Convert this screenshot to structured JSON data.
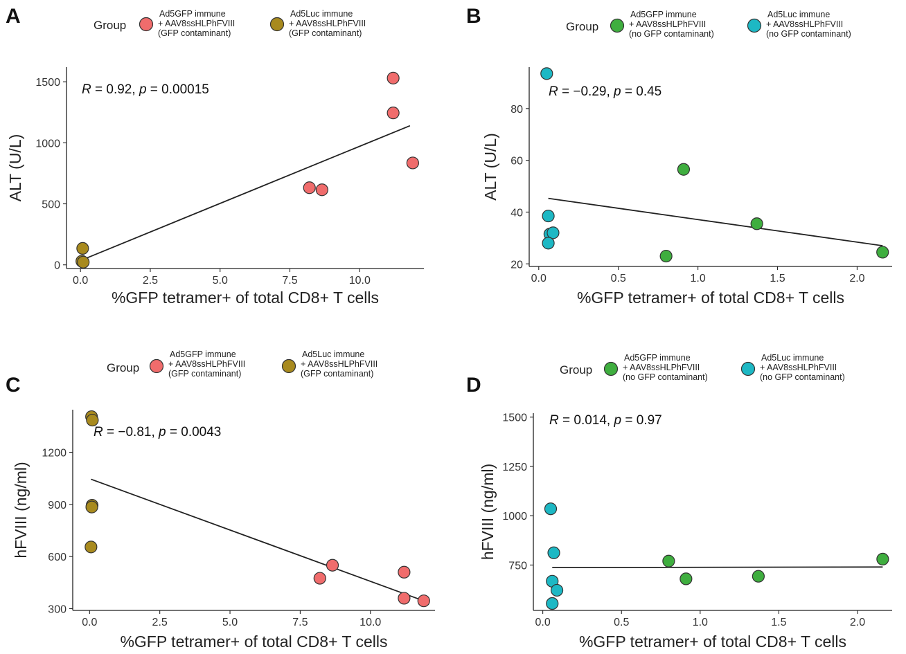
{
  "colors": {
    "ad5gfp_contaminant": "#f06c6c",
    "ad5luc_contaminant": "#a88a1e",
    "ad5gfp_no_contaminant": "#3fae3f",
    "ad5luc_no_contaminant": "#1db8c4"
  },
  "chart_data": [
    {
      "panel": "A",
      "type": "scatter",
      "legend": {
        "title": "Group",
        "entries": [
          {
            "name": "Ad5GFP immune",
            "lines": [
              "+ AAV8ssHLPhFVIII",
              "(GFP contaminant)"
            ],
            "color_key": "ad5gfp_contaminant"
          },
          {
            "name": "Ad5Luc immune",
            "lines": [
              "+ AAV8ssHLPhFVIII",
              "(GFP contaminant)"
            ],
            "color_key": "ad5luc_contaminant"
          }
        ]
      },
      "stat": {
        "r_label": "R",
        "r_value": " = 0.92, ",
        "p_label": "p",
        "p_value": " = 0.00015"
      },
      "xlabel": "%GFP tetramer+ of total CD8+ T cells",
      "ylabel": "ALT (U/L)",
      "xlim": [
        -0.5,
        12.3
      ],
      "ylim": [
        -30,
        1620
      ],
      "xticks": [
        0.0,
        2.5,
        5.0,
        7.5,
        10.0
      ],
      "xtick_labels": [
        "0.0",
        "2.5",
        "5.0",
        "7.5",
        "10.0"
      ],
      "yticks": [
        0,
        500,
        1000,
        1500
      ],
      "ytick_labels": [
        "0",
        "500",
        "1000",
        "1500"
      ],
      "fit": [
        [
          0.05,
          40
        ],
        [
          11.8,
          1140
        ]
      ],
      "series": [
        {
          "name": "Ad5GFP immune + AAV8ssHLPhFVIII (GFP contaminant)",
          "color_key": "ad5gfp_contaminant",
          "points": [
            [
              11.2,
              1530
            ],
            [
              11.2,
              1245
            ],
            [
              11.9,
              835
            ],
            [
              8.2,
              632
            ],
            [
              8.65,
              615
            ]
          ]
        },
        {
          "name": "Ad5Luc immune + AAV8ssHLPhFVIII (GFP contaminant)",
          "color_key": "ad5luc_contaminant",
          "points": [
            [
              0.08,
              135
            ],
            [
              0.05,
              30
            ],
            [
              0.1,
              22
            ]
          ]
        }
      ]
    },
    {
      "panel": "B",
      "type": "scatter",
      "legend": {
        "title": "Group",
        "entries": [
          {
            "name": "Ad5GFP immune",
            "lines": [
              "+ AAV8ssHLPhFVIII",
              "(no GFP contaminant)"
            ],
            "color_key": "ad5gfp_no_contaminant"
          },
          {
            "name": "Ad5Luc immune",
            "lines": [
              "+ AAV8ssHLPhFVIII",
              "(no GFP contaminant)"
            ],
            "color_key": "ad5luc_no_contaminant"
          }
        ]
      },
      "stat": {
        "r_label": "R",
        "r_value": " = −0.29, ",
        "p_label": "p",
        "p_value": " = 0.45"
      },
      "xlabel": "%GFP tetramer+ of total CD8+ T cells",
      "ylabel": "ALT (U/L)",
      "xlim": [
        -0.06,
        2.22
      ],
      "ylim": [
        19,
        96
      ],
      "xticks": [
        0.0,
        0.5,
        1.0,
        1.5,
        2.0
      ],
      "xtick_labels": [
        "0.0",
        "0.5",
        "1.0",
        "1.5",
        "2.0"
      ],
      "yticks": [
        20,
        40,
        60,
        80
      ],
      "ytick_labels": [
        "20",
        "40",
        "60",
        "80"
      ],
      "fit": [
        [
          0.06,
          45.3
        ],
        [
          2.16,
          27.0
        ]
      ],
      "series": [
        {
          "name": "Ad5GFP immune + AAV8ssHLPhFVIII (no GFP contaminant)",
          "color_key": "ad5gfp_no_contaminant",
          "points": [
            [
              0.91,
              56.5
            ],
            [
              1.37,
              35.5
            ],
            [
              0.8,
              23
            ],
            [
              2.16,
              24.5
            ]
          ]
        },
        {
          "name": "Ad5Luc immune + AAV8ssHLPhFVIII (no GFP contaminant)",
          "color_key": "ad5luc_no_contaminant",
          "points": [
            [
              0.05,
              93.5
            ],
            [
              0.06,
              38.5
            ],
            [
              0.07,
              31.5
            ],
            [
              0.09,
              32
            ],
            [
              0.06,
              28
            ]
          ]
        }
      ]
    },
    {
      "panel": "C",
      "type": "scatter",
      "legend": {
        "title": "Group",
        "entries": [
          {
            "name": "Ad5GFP immune",
            "lines": [
              "+ AAV8ssHLPhFVIII",
              "(GFP contaminant)"
            ],
            "color_key": "ad5gfp_contaminant"
          },
          {
            "name": "Ad5Luc immune",
            "lines": [
              "+ AAV8ssHLPhFVIII",
              "(GFP contaminant)"
            ],
            "color_key": "ad5luc_contaminant"
          }
        ]
      },
      "stat": {
        "r_label": "R",
        "r_value": " = −0.81, ",
        "p_label": "p",
        "p_value": " = 0.0043"
      },
      "xlabel": "%GFP tetramer+ of total CD8+ T cells",
      "ylabel": "hFVIII (ng/ml)",
      "xlim": [
        -0.6,
        12.3
      ],
      "ylim": [
        290,
        1445
      ],
      "xticks": [
        0.0,
        2.5,
        5.0,
        7.5,
        10.0
      ],
      "xtick_labels": [
        "0.0",
        "2.5",
        "5.0",
        "7.5",
        "10.0"
      ],
      "yticks": [
        300,
        600,
        900,
        1200
      ],
      "ytick_labels": [
        "300",
        "600",
        "900",
        "1200"
      ],
      "fit": [
        [
          0.05,
          1045
        ],
        [
          11.9,
          345
        ]
      ],
      "series": [
        {
          "name": "Ad5GFP immune + AAV8ssHLPhFVIII (GFP contaminant)",
          "color_key": "ad5gfp_contaminant",
          "points": [
            [
              8.65,
              550
            ],
            [
              8.2,
              475
            ],
            [
              11.2,
              510
            ],
            [
              11.2,
              360
            ],
            [
              11.9,
              345
            ]
          ]
        },
        {
          "name": "Ad5Luc immune + AAV8ssHLPhFVIII (GFP contaminant)",
          "color_key": "ad5luc_contaminant",
          "points": [
            [
              0.07,
              1405
            ],
            [
              0.1,
              1385
            ],
            [
              0.09,
              895
            ],
            [
              0.08,
              885
            ],
            [
              0.05,
              655
            ]
          ]
        }
      ]
    },
    {
      "panel": "D",
      "type": "scatter",
      "legend": {
        "title": "Group",
        "entries": [
          {
            "name": "Ad5GFP immune",
            "lines": [
              "+ AAV8ssHLPhFVIII",
              "(no GFP contaminant)"
            ],
            "color_key": "ad5gfp_no_contaminant"
          },
          {
            "name": "Ad5Luc immune",
            "lines": [
              "+ AAV8ssHLPhFVIII",
              "(no GFP contaminant)"
            ],
            "color_key": "ad5luc_no_contaminant"
          }
        ]
      },
      "stat": {
        "r_label": "R",
        "r_value": " = 0.014, ",
        "p_label": "p",
        "p_value": " = 0.97"
      },
      "xlabel": "%GFP tetramer+ of total CD8+ T cells",
      "ylabel": "hFVIII (ng/ml)",
      "xlim": [
        -0.06,
        2.22
      ],
      "ylim": [
        520,
        1520
      ],
      "xticks": [
        0.0,
        0.5,
        1.0,
        1.5,
        2.0
      ],
      "xtick_labels": [
        "0.0",
        "0.5",
        "1.0",
        "1.5",
        "2.0"
      ],
      "yticks": [
        750,
        1000,
        1250,
        1500
      ],
      "ytick_labels": [
        "750",
        "1000",
        "1250",
        "1500"
      ],
      "fit": [
        [
          0.06,
          737
        ],
        [
          2.16,
          740
        ]
      ],
      "series": [
        {
          "name": "Ad5GFP immune + AAV8ssHLPhFVIII (no GFP contaminant)",
          "color_key": "ad5gfp_no_contaminant",
          "points": [
            [
              0.8,
              770
            ],
            [
              0.91,
              680
            ],
            [
              1.37,
              693
            ],
            [
              2.16,
              780
            ]
          ]
        },
        {
          "name": "Ad5Luc immune + AAV8ssHLPhFVIII (no GFP contaminant)",
          "color_key": "ad5luc_no_contaminant",
          "points": [
            [
              0.05,
              1035
            ],
            [
              0.07,
              812
            ],
            [
              0.06,
              668
            ],
            [
              0.09,
              622
            ],
            [
              0.06,
              555
            ]
          ]
        }
      ]
    }
  ]
}
